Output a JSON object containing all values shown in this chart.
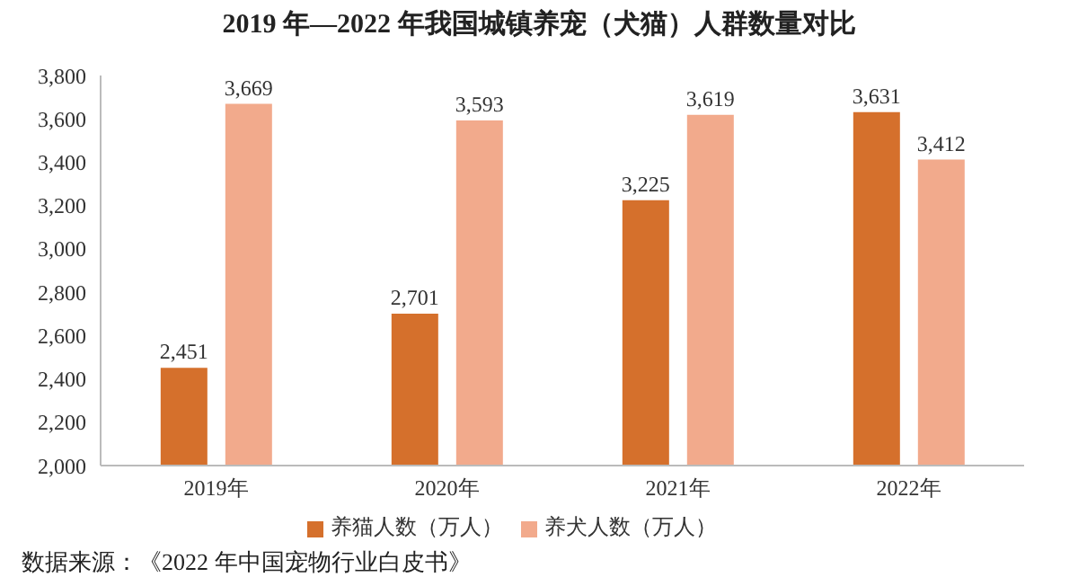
{
  "chart_data": {
    "type": "bar",
    "title": "2019 年—2022 年我国城镇养宠（犬猫）人群数量对比",
    "categories": [
      "2019年",
      "2020年",
      "2021年",
      "2022年"
    ],
    "series": [
      {
        "name": "养猫人数（万人）",
        "color": "#d5702c",
        "values": [
          2451,
          2701,
          3225,
          3631
        ],
        "value_labels": [
          "2,451",
          "2,701",
          "3,225",
          "3,631"
        ]
      },
      {
        "name": "养犬人数（万人）",
        "color": "#f2aa8c",
        "values": [
          3669,
          3593,
          3619,
          3412
        ],
        "value_labels": [
          "3,669",
          "3,593",
          "3,619",
          "3,412"
        ]
      }
    ],
    "ylim": [
      2000,
      3800
    ],
    "yticks": [
      {
        "value": 2000,
        "label": "2,000"
      },
      {
        "value": 2200,
        "label": "2,200"
      },
      {
        "value": 2400,
        "label": "2,400"
      },
      {
        "value": 2600,
        "label": "2,600"
      },
      {
        "value": 2800,
        "label": "2,800"
      },
      {
        "value": 3000,
        "label": "3,000"
      },
      {
        "value": 3200,
        "label": "3,200"
      },
      {
        "value": 3400,
        "label": "3,400"
      },
      {
        "value": 3600,
        "label": "3,600"
      },
      {
        "value": 3800,
        "label": "3,800"
      }
    ],
    "grid": false,
    "legend": "bottom",
    "annotations": [
      "数据来源：《2022 年中国宠物行业白皮书》"
    ]
  }
}
